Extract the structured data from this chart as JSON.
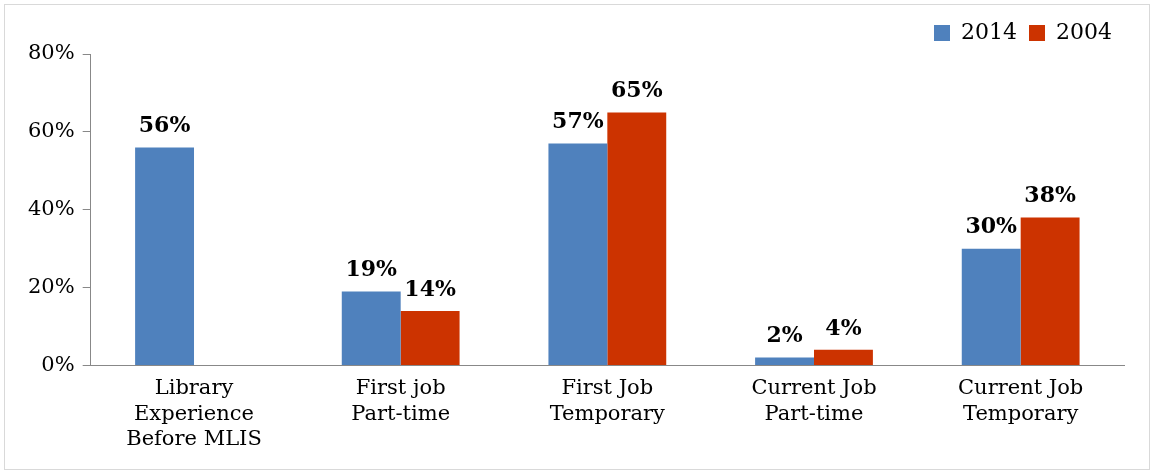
{
  "chart_data": {
    "type": "bar",
    "categories": [
      "Library Experience Before MLIS",
      "First job Part-time",
      "First Job Temporary",
      "Current Job Part-time",
      "Current Job Temporary"
    ],
    "series": [
      {
        "name": "2014",
        "color": "#4f81bd",
        "values": [
          56,
          19,
          57,
          2,
          30
        ],
        "value_labels": [
          "56%",
          "19%",
          "57%",
          "2%",
          "30%"
        ]
      },
      {
        "name": "2004",
        "color": "#cc3300",
        "values": [
          null,
          14,
          65,
          4,
          38
        ],
        "value_labels": [
          null,
          "14%",
          "65%",
          "4%",
          "38%"
        ]
      }
    ],
    "ylim": [
      0,
      80
    ],
    "yticks": [
      {
        "value": 0,
        "label": "0%"
      },
      {
        "value": 20,
        "label": "20%"
      },
      {
        "value": 40,
        "label": "40%"
      },
      {
        "value": 60,
        "label": "60%"
      },
      {
        "value": 80,
        "label": "80%"
      }
    ],
    "grid": false,
    "legend": "top right"
  }
}
